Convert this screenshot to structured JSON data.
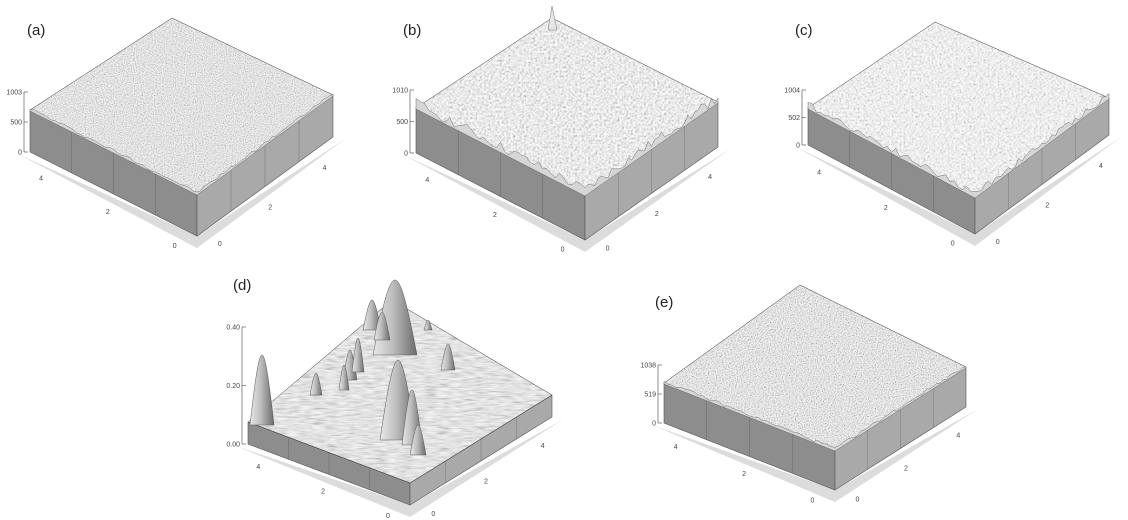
{
  "figure": {
    "panels": [
      {
        "label": "(a)",
        "z_ticks": [
          "1003",
          "500",
          "0"
        ],
        "x_ticks": [
          "4",
          "2",
          "0"
        ],
        "y_ticks": [
          "0",
          "2",
          "4"
        ],
        "texture": "fine-noise"
      },
      {
        "label": "(b)",
        "z_ticks": [
          "1010",
          "500",
          "0"
        ],
        "x_ticks": [
          "4",
          "2",
          "0"
        ],
        "y_ticks": [
          "0",
          "2",
          "4"
        ],
        "texture": "spiky"
      },
      {
        "label": "(c)",
        "z_ticks": [
          "1004",
          "502",
          "0"
        ],
        "x_ticks": [
          "4",
          "2",
          "0"
        ],
        "y_ticks": [
          "0",
          "2",
          "4"
        ],
        "texture": "spiky-light"
      },
      {
        "label": "(d)",
        "z_ticks": [
          "0.40",
          "0.20",
          "0.00"
        ],
        "x_ticks": [
          "4",
          "2",
          "0"
        ],
        "y_ticks": [
          "0",
          "2",
          "4"
        ],
        "texture": "peaks"
      },
      {
        "label": "(e)",
        "z_ticks": [
          "1038",
          "519",
          "0"
        ],
        "x_ticks": [
          "4",
          "2",
          "0"
        ],
        "y_ticks": [
          "0",
          "2",
          "4"
        ],
        "texture": "fine-noise-dark"
      }
    ]
  },
  "chart_data": [
    {
      "type": "surface",
      "title": "(a)",
      "xlim": [
        0,
        5
      ],
      "ylim": [
        0,
        5
      ],
      "zlim": [
        0,
        1003
      ],
      "x_ticks": [
        4,
        2,
        0
      ],
      "y_ticks": [
        0,
        2,
        4
      ],
      "z_ticks": [
        1003,
        500,
        0
      ]
    },
    {
      "type": "surface",
      "title": "(b)",
      "xlim": [
        0,
        5
      ],
      "ylim": [
        0,
        5
      ],
      "zlim": [
        0,
        1010
      ],
      "x_ticks": [
        4,
        2,
        0
      ],
      "y_ticks": [
        0,
        2,
        4
      ],
      "z_ticks": [
        1010,
        500,
        0
      ]
    },
    {
      "type": "surface",
      "title": "(c)",
      "xlim": [
        0,
        5
      ],
      "ylim": [
        0,
        5
      ],
      "zlim": [
        0,
        1004
      ],
      "x_ticks": [
        4,
        2,
        0
      ],
      "y_ticks": [
        0,
        2,
        4
      ],
      "z_ticks": [
        1004,
        502,
        0
      ]
    },
    {
      "type": "surface",
      "title": "(d)",
      "xlim": [
        0,
        5
      ],
      "ylim": [
        0,
        5
      ],
      "zlim": [
        0,
        0.4
      ],
      "x_ticks": [
        4,
        2,
        0
      ],
      "y_ticks": [
        0,
        2,
        4
      ],
      "z_ticks": [
        0.4,
        0.2,
        0.0
      ]
    },
    {
      "type": "surface",
      "title": "(e)",
      "xlim": [
        0,
        5
      ],
      "ylim": [
        0,
        5
      ],
      "zlim": [
        0,
        1038
      ],
      "x_ticks": [
        4,
        2,
        0
      ],
      "y_ticks": [
        0,
        2,
        4
      ],
      "z_ticks": [
        1038,
        519,
        0
      ]
    }
  ]
}
